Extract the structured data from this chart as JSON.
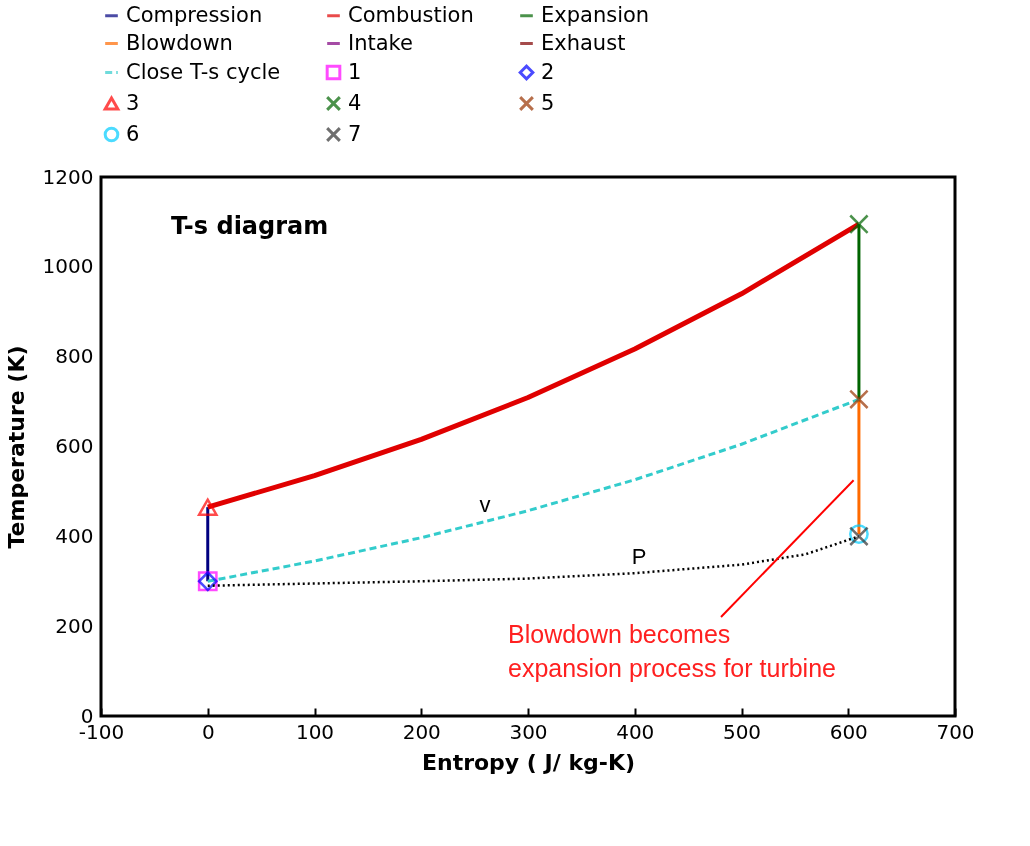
{
  "chart_data": {
    "type": "line",
    "title": "T-s diagram",
    "xlabel": "Entropy ( J/ kg-K)",
    "ylabel": "Temperature (K)",
    "xlim": [
      -100,
      700
    ],
    "xticks": [
      -100,
      0,
      100,
      200,
      300,
      400,
      500,
      600,
      700
    ],
    "ylim": [
      0,
      1200
    ],
    "yticks": [
      0,
      200,
      400,
      600,
      800,
      {
        "value": 1000,
        "label": "1000"
      },
      {
        "value": 1200,
        "label": "1200"
      }
    ],
    "grid": false,
    "legend": "top",
    "series": [
      {
        "name": "Compression",
        "color": "#000080",
        "line_style": "solid",
        "x": [
          0,
          0
        ],
        "values": [
          300,
          465
        ]
      },
      {
        "name": "Combustion",
        "color": "#e00000",
        "line_style": "solid",
        "x": [
          0,
          100,
          200,
          300,
          400,
          500,
          610
        ],
        "values": [
          465,
          535,
          616,
          709,
          817,
          940,
          1095
        ]
      },
      {
        "name": "Expansion",
        "color": "#006400",
        "line_style": "solid",
        "x": [
          610,
          610
        ],
        "values": [
          1095,
          705
        ]
      },
      {
        "name": "Blowdown",
        "color": "#ff6a00",
        "line_style": "solid",
        "x": [
          610,
          610
        ],
        "values": [
          705,
          405
        ]
      },
      {
        "name": "Intake",
        "color": "#800080",
        "line_style": "solid"
      },
      {
        "name": "Exhaust",
        "color": "#800000",
        "line_style": "solid"
      },
      {
        "name": "Close T-s cycle",
        "color": "#33cccc",
        "line_style": "dashed",
        "x": [
          0,
          100,
          200,
          300,
          400,
          500,
          610
        ],
        "values": [
          300,
          345,
          397,
          457,
          526,
          605,
          705
        ]
      },
      {
        "name": "1",
        "color": "#ff00ff",
        "type": "scatter",
        "marker": "square",
        "x": [
          0
        ],
        "values": [
          300
        ]
      },
      {
        "name": "2",
        "color": "#0000ff",
        "type": "scatter",
        "marker": "diamond",
        "x": [
          0
        ],
        "values": [
          300
        ]
      },
      {
        "name": "3",
        "color": "#ff0000",
        "type": "scatter",
        "marker": "triangle",
        "x": [
          0
        ],
        "values": [
          465
        ]
      },
      {
        "name": "4",
        "color": "#006400",
        "type": "scatter",
        "marker": "cross",
        "x": [
          610
        ],
        "values": [
          1095
        ]
      },
      {
        "name": "5",
        "color": "#993300",
        "type": "scatter",
        "marker": "cross",
        "x": [
          610
        ],
        "values": [
          705
        ]
      },
      {
        "name": "6",
        "color": "#00ccff",
        "type": "scatter",
        "marker": "circle",
        "x": [
          610
        ],
        "values": [
          405
        ]
      },
      {
        "name": "7",
        "color": "#333333",
        "type": "scatter",
        "marker": "cross",
        "x": [
          610
        ],
        "values": [
          400
        ]
      },
      {
        "color": "#000000",
        "line_style": "dotted",
        "x": [
          0,
          100,
          200,
          300,
          400,
          500,
          560,
          610
        ],
        "values": [
          290,
          295,
          300,
          306,
          318,
          337,
          360,
          400
        ]
      }
    ],
    "annotations": [
      "v",
      "P",
      {
        "text": "Blowdown becomes\nexpansion process for turbine",
        "x": 605,
        "y": 525
      }
    ]
  }
}
